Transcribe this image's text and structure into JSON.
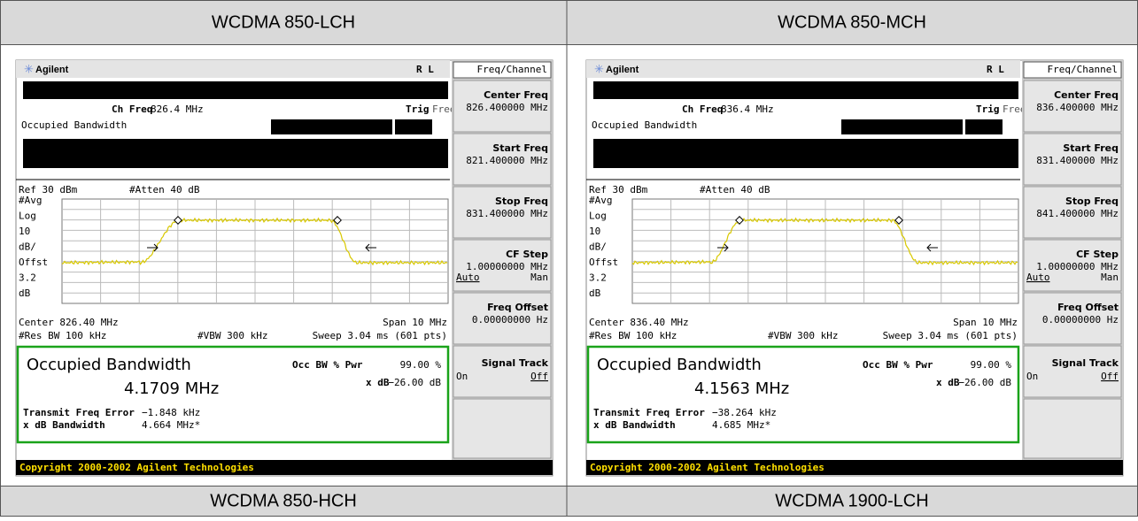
{
  "table": {
    "header": [
      "WCDMA 850-LCH",
      "WCDMA 850-MCH"
    ],
    "footer": [
      "WCDMA 850-HCH",
      "WCDMA 1900-LCH"
    ]
  },
  "screens": [
    {
      "brand": "Agilent",
      "status": "R L",
      "menu_title": "Freq/Channel",
      "ch_freq_label": "Ch Freq",
      "ch_freq": "826.4 MHz",
      "trig_label": "Trig",
      "trig": "Free",
      "mode": "Occupied Bandwidth",
      "ref": "Ref 30 dBm",
      "atten": "#Atten 40 dB",
      "scale": [
        "#Avg",
        "Log",
        "10",
        "dB/",
        "Offst",
        "3.2",
        "dB"
      ],
      "center": "Center 826.40 MHz",
      "span": "Span 10 MHz",
      "res_bw": "#Res BW 100 kHz",
      "vbw": "#VBW 300 kHz",
      "sweep": "Sweep 3.04 ms (601 pts)",
      "result_title": "Occupied Bandwidth",
      "result": "4.1709 MHz",
      "occ_label": "Occ BW % Pwr",
      "occ": "99.00 %",
      "xdb_label": "x dB",
      "xdb": "−26.00 dB",
      "tfe_label": "Transmit Freq Error",
      "tfe": "−1.848 kHz",
      "xbw_label": "x dB Bandwidth",
      "xbw": "4.664 MHz*",
      "copyright": "Copyright 2000-2002 Agilent Technologies",
      "softkeys": [
        {
          "label": "Center Freq",
          "value": "826.400000 MHz"
        },
        {
          "label": "Start Freq",
          "value": "821.400000 MHz"
        },
        {
          "label": "Stop Freq",
          "value": "831.400000 MHz"
        },
        {
          "label": "CF Step",
          "value": "1.00000000 MHz",
          "options": [
            "Auto",
            "Man"
          ]
        },
        {
          "label": "Freq Offset",
          "value": "0.00000000 Hz"
        },
        {
          "label": "Signal Track",
          "options": [
            "On",
            "Off"
          ]
        }
      ]
    },
    {
      "brand": "Agilent",
      "status": "R L",
      "menu_title": "Freq/Channel",
      "ch_freq_label": "Ch Freq",
      "ch_freq": "836.4 MHz",
      "trig_label": "Trig",
      "trig": "Free",
      "mode": "Occupied Bandwidth",
      "ref": "Ref 30 dBm",
      "atten": "#Atten 40 dB",
      "scale": [
        "#Avg",
        "Log",
        "10",
        "dB/",
        "Offst",
        "3.2",
        "dB"
      ],
      "center": "Center 836.40 MHz",
      "span": "Span 10 MHz",
      "res_bw": "#Res BW 100 kHz",
      "vbw": "#VBW 300 kHz",
      "sweep": "Sweep 3.04 ms (601 pts)",
      "result_title": "Occupied Bandwidth",
      "result": "4.1563 MHz",
      "occ_label": "Occ BW % Pwr",
      "occ": "99.00 %",
      "xdb_label": "x dB",
      "xdb": "−26.00 dB",
      "tfe_label": "Transmit Freq Error",
      "tfe": "−38.264 kHz",
      "xbw_label": "x dB Bandwidth",
      "xbw": "4.685 MHz*",
      "copyright": "Copyright 2000-2002 Agilent Technologies",
      "softkeys": [
        {
          "label": "Center Freq",
          "value": "836.400000 MHz"
        },
        {
          "label": "Start Freq",
          "value": "831.400000 MHz"
        },
        {
          "label": "Stop Freq",
          "value": "841.400000 MHz"
        },
        {
          "label": "CF Step",
          "value": "1.00000000 MHz",
          "options": [
            "Auto",
            "Man"
          ]
        },
        {
          "label": "Freq Offset",
          "value": "0.00000000 Hz"
        },
        {
          "label": "Signal Track",
          "options": [
            "On",
            "Off"
          ]
        }
      ]
    }
  ]
}
